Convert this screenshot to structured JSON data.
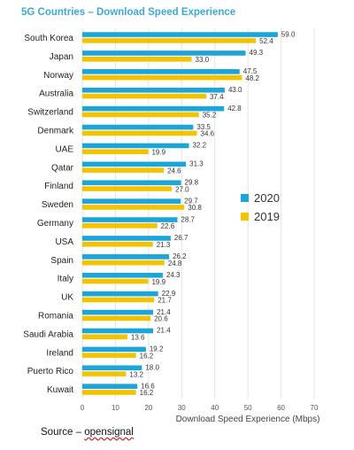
{
  "title": "5G Countries – Download Speed Experience",
  "source": {
    "prefix": "Source – ",
    "name": "opensignal"
  },
  "chart_data": {
    "type": "bar",
    "orientation": "horizontal",
    "title": "5G Countries – Download Speed Experience",
    "xlabel": "Download Speed Experience (Mbps)",
    "ylabel": "",
    "xlim": [
      0,
      70
    ],
    "xticks": [
      0,
      10,
      20,
      30,
      40,
      50,
      60,
      70
    ],
    "grid": true,
    "legend_position": "right",
    "categories": [
      "South Korea",
      "Japan",
      "Norway",
      "Australia",
      "Switzerland",
      "Denmark",
      "UAE",
      "Qatar",
      "Finland",
      "Sweden",
      "Germany",
      "USA",
      "Spain",
      "Italy",
      "UK",
      "Romania",
      "Saudi Arabia",
      "Ireland",
      "Puerto Rico",
      "Kuwait"
    ],
    "series": [
      {
        "name": "2020",
        "color": "#1ba5d8",
        "values": [
          59.0,
          49.3,
          47.5,
          43.0,
          42.8,
          33.5,
          32.2,
          31.3,
          29.8,
          29.7,
          28.7,
          26.7,
          26.2,
          24.3,
          22.9,
          21.4,
          21.4,
          19.2,
          18.0,
          16.6
        ]
      },
      {
        "name": "2019",
        "color": "#f3c300",
        "values": [
          52.4,
          33.0,
          48.2,
          37.4,
          35.2,
          34.6,
          19.9,
          24.6,
          27.0,
          30.8,
          22.6,
          21.3,
          24.8,
          19.9,
          21.7,
          20.6,
          13.6,
          16.2,
          13.2,
          16.2
        ]
      }
    ]
  }
}
